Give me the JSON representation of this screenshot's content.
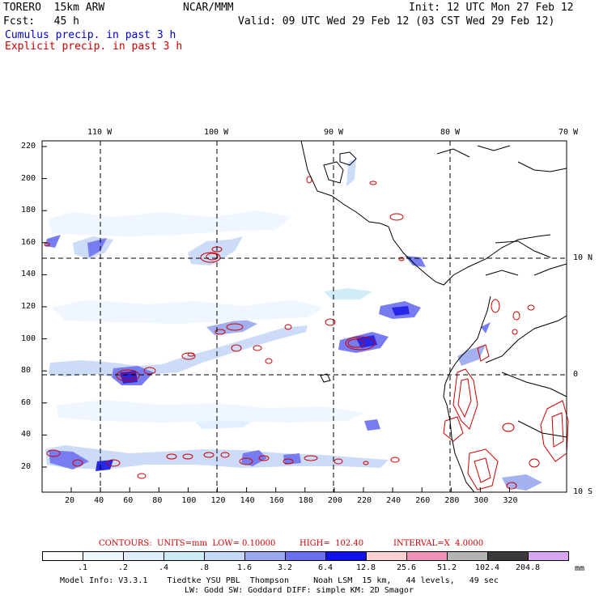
{
  "header": {
    "model_name": "TORERO  15km ARW",
    "center": "NCAR/MMM",
    "init": "Init: 12 UTC Mon 27 Feb 12",
    "forecast": "Fcst:   45 h",
    "valid": "Valid: 09 UTC Wed 29 Feb 12 (03 CST Wed 29 Feb 12)",
    "cumulus_label": "Cumulus precip. in past 3 h",
    "explicit_label": "Explicit precip. in past 3 h"
  },
  "colors": {
    "cumulus": "#0000cc",
    "explicit": "#cc0000",
    "border": "#000000"
  },
  "map": {
    "lon_labels_top": [
      "110 W",
      "100 W",
      "90 W",
      "80 W",
      "70 W"
    ],
    "lat_labels_right": [
      "10 N",
      "0",
      "10 S"
    ],
    "y_ticks": [
      "220",
      "200",
      "180",
      "160",
      "140",
      "120",
      "100",
      "80",
      "60",
      "40",
      "20"
    ],
    "x_ticks": [
      "20",
      "40",
      "60",
      "80",
      "100",
      "120",
      "140",
      "160",
      "180",
      "200",
      "220",
      "240",
      "260",
      "280",
      "300",
      "320"
    ]
  },
  "contours": {
    "units": "CONTOURS:  UNITS=mm  LOW= 0.10000",
    "high": "HIGH=  102.40",
    "interval": "INTERVAL=X  4.0000"
  },
  "colorbar": {
    "labels": [
      ".1",
      ".2",
      ".4",
      ".8",
      "1.6",
      "3.2",
      "6.4",
      "12.8",
      "25.6",
      "51.2",
      "102.4",
      "204.8"
    ],
    "unit": "mm",
    "colors": [
      "#ffffff",
      "#eef6ff",
      "#dfeeff",
      "#ccecf8",
      "#c6d8f8",
      "#9aa8ee",
      "#6a6ef0",
      "#1010e8",
      "#fbd2d2",
      "#f292b8",
      "#b4b4b4",
      "#3a3a3a",
      "#d8a6f0"
    ]
  },
  "model_info": {
    "line1": "Model Info: V3.3.1    Tiedtke YSU PBL  Thompson     Noah LSM  15 km,   44 levels,   49 sec",
    "line2": "LW: Godd SW: Goddard DIFF: simple KM: 2D Smagor"
  }
}
